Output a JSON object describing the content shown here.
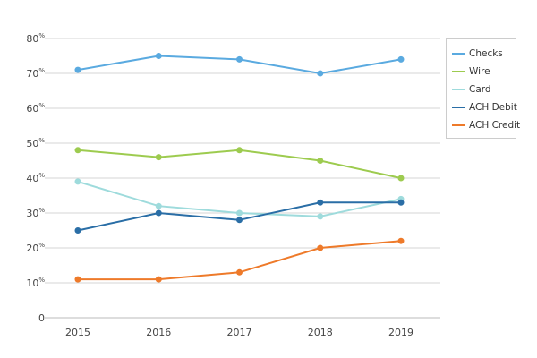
{
  "chart_data": {
    "type": "line",
    "title": "",
    "xlabel": "",
    "ylabel": "",
    "x": [
      "2015",
      "2016",
      "2017",
      "2018",
      "2019"
    ],
    "ylim": [
      0,
      80
    ],
    "yticks": [
      {
        "value": 0,
        "label": "0",
        "suffix": ""
      },
      {
        "value": 10,
        "label": "10",
        "suffix": "%"
      },
      {
        "value": 20,
        "label": "20",
        "suffix": "%"
      },
      {
        "value": 30,
        "label": "30",
        "suffix": "%"
      },
      {
        "value": 40,
        "label": "40",
        "suffix": "%"
      },
      {
        "value": 50,
        "label": "50",
        "suffix": "%"
      },
      {
        "value": 60,
        "label": "60",
        "suffix": "%"
      },
      {
        "value": 70,
        "label": "70",
        "suffix": "%"
      },
      {
        "value": 80,
        "label": "80",
        "suffix": "%"
      }
    ],
    "grid": true,
    "legend_position": "right",
    "series": [
      {
        "name": "Checks",
        "color": "#5aaae0",
        "values": [
          71,
          75,
          74,
          70,
          74
        ]
      },
      {
        "name": "Wire",
        "color": "#9dcb4f",
        "values": [
          48,
          46,
          48,
          45,
          40
        ]
      },
      {
        "name": "Card",
        "color": "#9edbdc",
        "values": [
          39,
          32,
          30,
          29,
          34
        ]
      },
      {
        "name": "ACH Debit",
        "color": "#2a6ea6",
        "values": [
          25,
          30,
          28,
          33,
          33
        ]
      },
      {
        "name": "ACH Credit",
        "color": "#ee7a2a",
        "values": [
          11,
          11,
          13,
          20,
          22
        ]
      }
    ]
  }
}
